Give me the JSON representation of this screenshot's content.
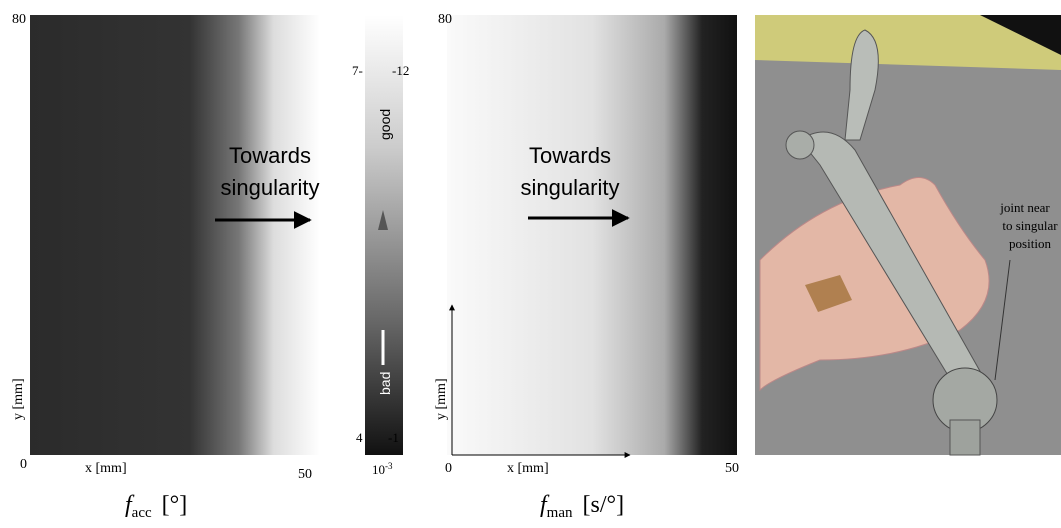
{
  "panels": [
    {
      "y_max": "80",
      "origin": "0",
      "x_max": "50",
      "x_label": "x [mm]",
      "y_label": "y [mm]",
      "annotation_line1": "Towards",
      "annotation_line2": "singularity",
      "metric_symbol": "f",
      "metric_subscript": "acc",
      "metric_unit": "[°]"
    },
    {
      "y_max": "80",
      "origin": "0",
      "x_max": "50",
      "x_label": "x [mm]",
      "y_label": "y [mm]",
      "annotation_line1": "Towards",
      "annotation_line2": "singularity",
      "metric_symbol": "f",
      "metric_subscript": "man",
      "metric_unit": "[s/°]"
    }
  ],
  "colorbar": {
    "top_left": "7-",
    "top_right": "-12",
    "good": "good",
    "bad": "bad",
    "bottom_left": "4",
    "bottom_right": "-1",
    "scale_base": "10",
    "scale_exp": "-3"
  },
  "render": {
    "callout_line1": "joint near",
    "callout_line2": "to singular",
    "callout_line3": "position"
  }
}
